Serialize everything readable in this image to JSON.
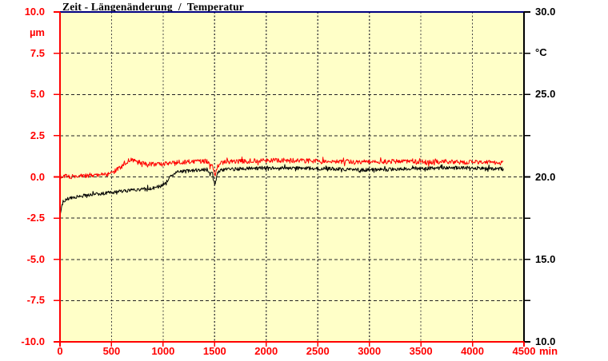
{
  "window": {
    "background": "#ffffff"
  },
  "chart_data": {
    "type": "line",
    "title": "Zeit - Längenänderung  /  Temperatur",
    "plot_background": "#ffffc8",
    "frame_colors": {
      "top": "#000080",
      "left": "#ff0000",
      "bottom": "#ff0000",
      "right": "#000000"
    },
    "x_axis": {
      "unit": "min",
      "range": [
        0,
        4500
      ],
      "tick_step": 500,
      "tick_values": [
        0,
        500,
        1000,
        1500,
        2000,
        2500,
        3000,
        3500,
        4000,
        4500
      ],
      "tick_labels": [
        "0",
        "500",
        "1000",
        "1500",
        "2000",
        "2500",
        "3000",
        "3500",
        "4000",
        "4500"
      ],
      "color": "#ff0000"
    },
    "left_axis": {
      "unit": "µm",
      "range": [
        -10,
        10
      ],
      "tick_step": 2.5,
      "tick_values": [
        10,
        7.5,
        5,
        2.5,
        0,
        -2.5,
        -5,
        -7.5,
        -10
      ],
      "tick_labels": [
        "10.0",
        "7.5",
        "5.0",
        "2.5",
        "0.0",
        "-2.5",
        "-5.0",
        "-7.5",
        "-10.0"
      ],
      "color": "#ff0000"
    },
    "right_axis": {
      "unit": "°C",
      "range": [
        10,
        30
      ],
      "tick_step": 2.5,
      "tick_values": [
        30,
        27.5,
        25,
        22.5,
        20,
        17.5,
        15,
        12.5,
        10
      ],
      "labeled_tick_values": [
        30,
        25,
        20,
        15,
        10
      ],
      "tick_labels": [
        "30.0",
        "25.0",
        "20.0",
        "15.0",
        "10.0"
      ],
      "color": "#000000"
    },
    "grid": {
      "horizontal": {
        "values_left_axis": [
          7.5,
          5,
          2.5,
          0,
          -2.5,
          -5,
          -7.5
        ],
        "style": "dashed",
        "color": "#222222"
      },
      "vertical": {
        "values": [
          500,
          1000,
          1500,
          2000,
          2500,
          3000,
          3500,
          4000
        ],
        "style": "dotted",
        "color": "#444444"
      }
    },
    "legend_position": "none",
    "series": [
      {
        "name": "Längenänderung",
        "axis": "left",
        "unit": "µm",
        "color": "#ff0000",
        "noise_amplitude": 0.14,
        "points": [
          [
            0,
            0.0
          ],
          [
            60,
            0.02
          ],
          [
            150,
            0.04
          ],
          [
            250,
            0.05
          ],
          [
            350,
            0.08
          ],
          [
            430,
            0.12
          ],
          [
            500,
            0.22
          ],
          [
            560,
            0.45
          ],
          [
            620,
            0.75
          ],
          [
            665,
            1.0
          ],
          [
            700,
            1.05
          ],
          [
            740,
            0.95
          ],
          [
            790,
            0.85
          ],
          [
            850,
            0.76
          ],
          [
            950,
            0.75
          ],
          [
            1020,
            0.78
          ],
          [
            1080,
            0.85
          ],
          [
            1150,
            0.9
          ],
          [
            1250,
            0.92
          ],
          [
            1350,
            0.95
          ],
          [
            1430,
            0.95
          ],
          [
            1455,
            0.62
          ],
          [
            1470,
            0.8
          ],
          [
            1492,
            0.35
          ],
          [
            1505,
            0.12
          ],
          [
            1525,
            0.6
          ],
          [
            1550,
            0.85
          ],
          [
            1600,
            0.92
          ],
          [
            1800,
            0.95
          ],
          [
            2000,
            1.0
          ],
          [
            2200,
            1.0
          ],
          [
            2400,
            0.97
          ],
          [
            2600,
            0.95
          ],
          [
            2800,
            0.92
          ],
          [
            3000,
            0.9
          ],
          [
            3200,
            0.93
          ],
          [
            3400,
            0.92
          ],
          [
            3600,
            0.9
          ],
          [
            3800,
            0.9
          ],
          [
            4000,
            0.9
          ],
          [
            4150,
            0.88
          ],
          [
            4300,
            0.85
          ]
        ]
      },
      {
        "name": "Temperatur",
        "axis": "right",
        "unit": "°C",
        "color": "#000000",
        "noise_amplitude": 0.11,
        "points": [
          [
            0,
            17.6
          ],
          [
            6,
            17.8
          ],
          [
            15,
            18.2
          ],
          [
            30,
            18.5
          ],
          [
            60,
            18.65
          ],
          [
            100,
            18.75
          ],
          [
            160,
            18.8
          ],
          [
            250,
            18.88
          ],
          [
            350,
            18.95
          ],
          [
            450,
            19.02
          ],
          [
            550,
            19.08
          ],
          [
            650,
            19.15
          ],
          [
            750,
            19.22
          ],
          [
            850,
            19.3
          ],
          [
            950,
            19.38
          ],
          [
            1000,
            19.5
          ],
          [
            1040,
            19.75
          ],
          [
            1080,
            20.05
          ],
          [
            1120,
            20.25
          ],
          [
            1160,
            20.33
          ],
          [
            1250,
            20.38
          ],
          [
            1350,
            20.42
          ],
          [
            1430,
            20.45
          ],
          [
            1455,
            20.15
          ],
          [
            1470,
            20.35
          ],
          [
            1492,
            19.75
          ],
          [
            1505,
            19.55
          ],
          [
            1525,
            20.15
          ],
          [
            1550,
            20.38
          ],
          [
            1600,
            20.45
          ],
          [
            1800,
            20.5
          ],
          [
            2000,
            20.55
          ],
          [
            2200,
            20.55
          ],
          [
            2400,
            20.52
          ],
          [
            2600,
            20.5
          ],
          [
            2800,
            20.45
          ],
          [
            3000,
            20.42
          ],
          [
            3200,
            20.45
          ],
          [
            3400,
            20.5
          ],
          [
            3600,
            20.52
          ],
          [
            3800,
            20.55
          ],
          [
            4000,
            20.55
          ],
          [
            4150,
            20.52
          ],
          [
            4300,
            20.5
          ]
        ]
      }
    ]
  }
}
